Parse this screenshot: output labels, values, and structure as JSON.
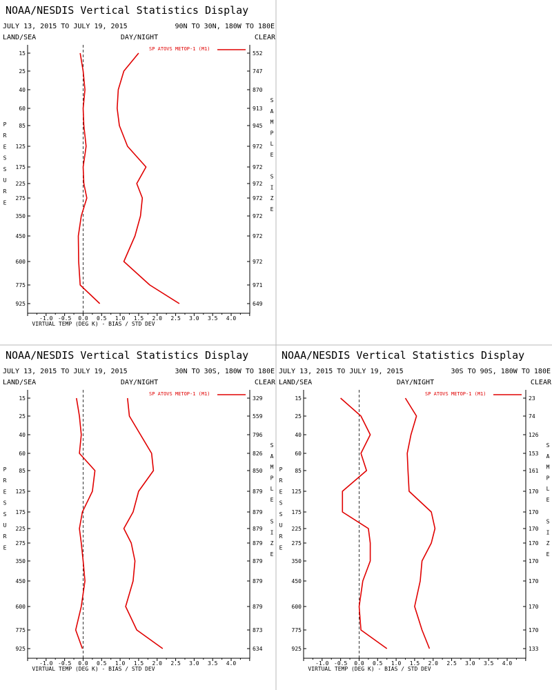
{
  "colors": {
    "series": "#e00000",
    "frame": "#b8b8b8",
    "text": "#000000"
  },
  "chart_data": [
    {
      "type": "line",
      "title": "NOAA/NESDIS Vertical Statistics Display",
      "date_range": "JULY 13, 2015 TO JULY 19, 2015",
      "region": "90N TO 30N, 180W TO 180E",
      "land_sea": "LAND/SEA",
      "day_night": "DAY/NIGHT",
      "clear": "CLEAR",
      "legend": "SP ATOVS METOP-1 (M1)",
      "xlabel": "VIRTUAL TEMP (DEG K) - BIAS / STD DEV",
      "ylabel": "PRESSURE",
      "sample_label": "SAMPLE SIZE",
      "xlim": [
        -1.5,
        4.5
      ],
      "x_ticks": [
        "-1.0",
        "-0.5",
        "0.0",
        "0.5",
        "1.0",
        "1.5",
        "2.0",
        "2.5",
        "3.0",
        "3.5",
        "4.0"
      ],
      "pressure_levels": [
        15,
        25,
        40,
        60,
        85,
        125,
        175,
        225,
        275,
        350,
        450,
        600,
        775,
        925
      ],
      "sample_size": [
        552,
        747,
        870,
        913,
        945,
        972,
        972,
        972,
        972,
        972,
        972,
        972,
        971,
        649
      ],
      "series": [
        {
          "name": "bias",
          "values": [
            -0.08,
            0.0,
            0.05,
            0.0,
            0.02,
            0.08,
            0.0,
            0.02,
            0.1,
            -0.05,
            -0.13,
            -0.12,
            -0.08,
            0.45
          ]
        },
        {
          "name": "std dev",
          "values": [
            1.5,
            1.1,
            0.95,
            0.92,
            0.98,
            1.2,
            1.7,
            1.45,
            1.6,
            1.55,
            1.4,
            1.1,
            1.8,
            2.6
          ]
        }
      ]
    },
    {
      "type": "line",
      "title": "NOAA/NESDIS Vertical Statistics Display",
      "date_range": "JULY 13, 2015 TO JULY 19, 2015",
      "region": "30N TO 30S, 180W TO 180E",
      "land_sea": "LAND/SEA",
      "day_night": "DAY/NIGHT",
      "clear": "CLEAR",
      "legend": "SP ATOVS METOP-1 (M1)",
      "xlabel": "VIRTUAL TEMP (DEG K) - BIAS / STD DEV",
      "ylabel": "PRESSURE",
      "sample_label": "SAMPLE SIZE",
      "xlim": [
        -1.5,
        4.5
      ],
      "x_ticks": [
        "-1.0",
        "-0.5",
        "0.0",
        "0.5",
        "1.0",
        "1.5",
        "2.0",
        "2.5",
        "3.0",
        "3.5",
        "4.0"
      ],
      "pressure_levels": [
        15,
        25,
        40,
        60,
        85,
        125,
        175,
        225,
        275,
        350,
        450,
        600,
        775,
        925
      ],
      "sample_size": [
        329,
        559,
        796,
        826,
        850,
        879,
        879,
        879,
        879,
        879,
        879,
        879,
        873,
        634
      ],
      "series": [
        {
          "name": "bias",
          "values": [
            -0.18,
            -0.1,
            -0.05,
            -0.1,
            0.32,
            0.25,
            -0.02,
            -0.1,
            -0.05,
            0.0,
            0.05,
            -0.05,
            -0.2,
            -0.02
          ]
        },
        {
          "name": "std dev",
          "values": [
            1.2,
            1.25,
            1.55,
            1.85,
            1.9,
            1.5,
            1.35,
            1.1,
            1.3,
            1.4,
            1.35,
            1.15,
            1.45,
            2.15
          ]
        }
      ]
    },
    {
      "type": "line",
      "title": "NOAA/NESDIS Vertical Statistics Display",
      "date_range": "JULY 13, 2015 TO JULY 19, 2015",
      "region": "30S TO 90S, 180W TO 180E",
      "land_sea": "LAND/SEA",
      "day_night": "DAY/NIGHT",
      "clear": "CLEAR",
      "legend": "SP ATOVS METOP-1 (M1)",
      "xlabel": "VIRTUAL TEMP (DEG K) - BIAS / STD DEV",
      "ylabel": "PRESSURE",
      "sample_label": "SAMPLE SIZE",
      "xlim": [
        -1.5,
        4.5
      ],
      "x_ticks": [
        "-1.0",
        "-0.5",
        "0.0",
        "0.5",
        "1.0",
        "1.5",
        "2.0",
        "2.5",
        "3.0",
        "3.5",
        "4.0"
      ],
      "pressure_levels": [
        15,
        25,
        40,
        60,
        85,
        125,
        175,
        225,
        275,
        350,
        450,
        600,
        775,
        925
      ],
      "sample_size": [
        23,
        74,
        126,
        153,
        161,
        170,
        170,
        170,
        170,
        170,
        170,
        170,
        170,
        133
      ],
      "series": [
        {
          "name": "bias",
          "values": [
            -0.5,
            0.05,
            0.3,
            0.05,
            0.2,
            -0.45,
            -0.45,
            0.25,
            0.3,
            0.3,
            0.1,
            0.0,
            0.05,
            0.75
          ]
        },
        {
          "name": "std dev",
          "values": [
            1.25,
            1.55,
            1.4,
            1.3,
            1.32,
            1.35,
            1.95,
            2.05,
            1.95,
            1.7,
            1.65,
            1.5,
            1.7,
            1.9
          ]
        }
      ]
    }
  ]
}
